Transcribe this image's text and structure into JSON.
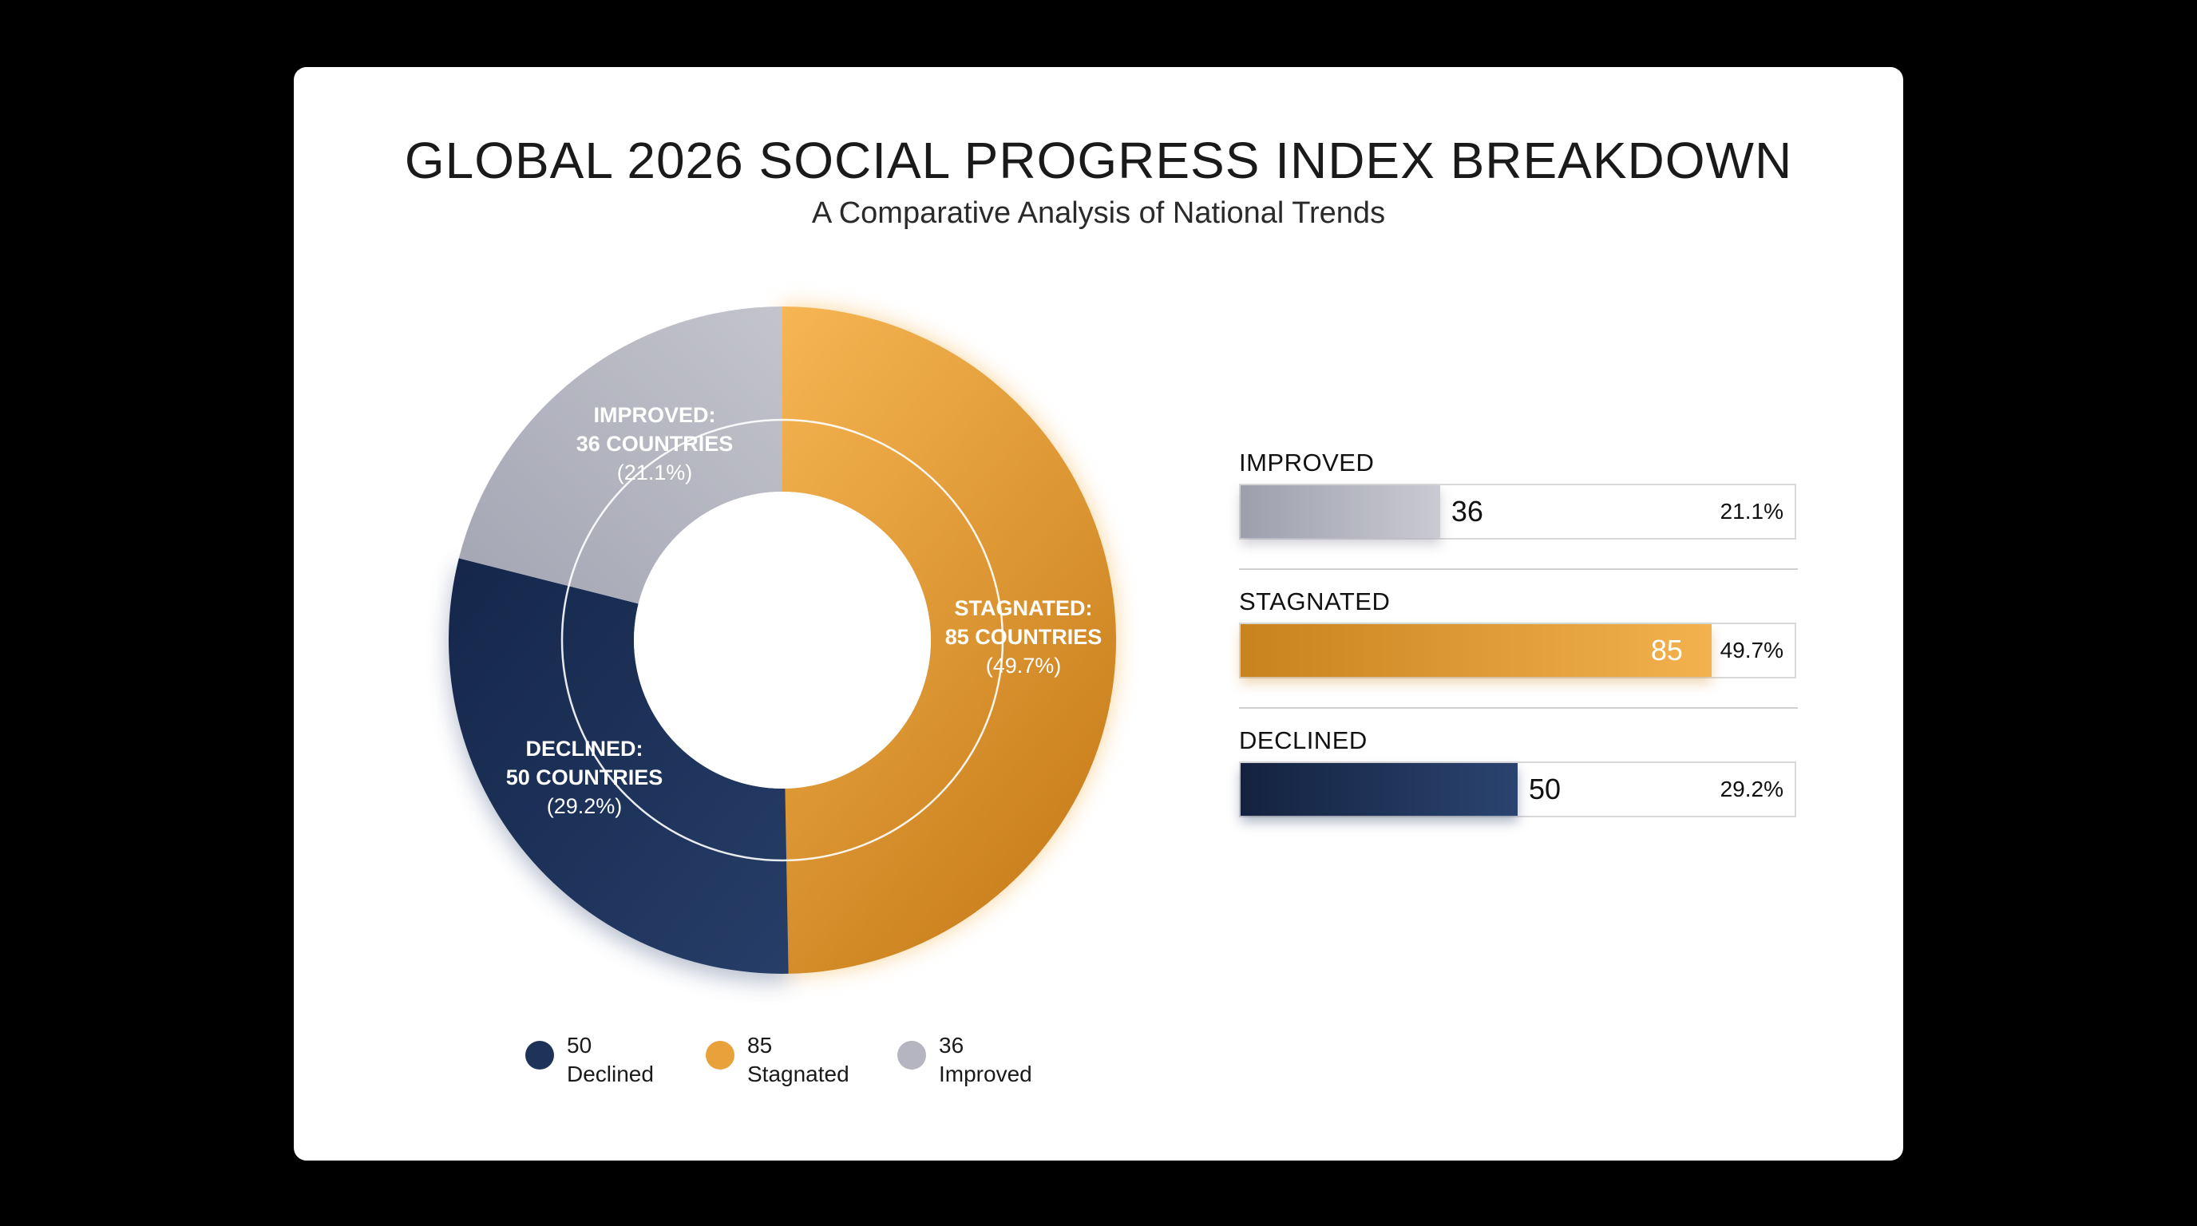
{
  "colors": {
    "declined": "#1f3358",
    "stagnated": "#e9a13c",
    "improved": "#b0b2be"
  },
  "chart_data": [
    {
      "type": "pie",
      "title": "GLOBAL 2026 SOCIAL PROGRESS INDEX BREAKDOWN",
      "subtitle": "A Comparative Analysis of National Trends",
      "slices": [
        {
          "key": "stagnated",
          "name": "Stagnated",
          "value": 85,
          "percent": 49.7,
          "label_line1": "STAGNATED:",
          "label_line2": "85 COUNTRIES",
          "label_line3": "(49.7%)"
        },
        {
          "key": "declined",
          "name": "Declined",
          "value": 50,
          "percent": 29.2,
          "label_line1": "DECLINED:",
          "label_line2": "50 COUNTRIES",
          "label_line3": "(29.2%)"
        },
        {
          "key": "improved",
          "name": "Improved",
          "value": 36,
          "percent": 21.1,
          "label_line1": "IMPROVED:",
          "label_line2": "36 COUNTRIES",
          "label_line3": "(21.1%)"
        }
      ],
      "legend": [
        {
          "key": "declined",
          "value": "50",
          "name": "Declined"
        },
        {
          "key": "stagnated",
          "value": "85",
          "name": "Stagnated"
        },
        {
          "key": "improved",
          "value": "36",
          "name": "Improved"
        }
      ]
    },
    {
      "type": "bar",
      "orientation": "horizontal",
      "categories": [
        "IMPROVED",
        "STAGNATED",
        "DECLINED"
      ],
      "values": [
        36,
        85,
        50
      ],
      "percent_labels": [
        "21.1%",
        "49.7%",
        "29.2%"
      ],
      "xlim": [
        0,
        100
      ]
    }
  ]
}
